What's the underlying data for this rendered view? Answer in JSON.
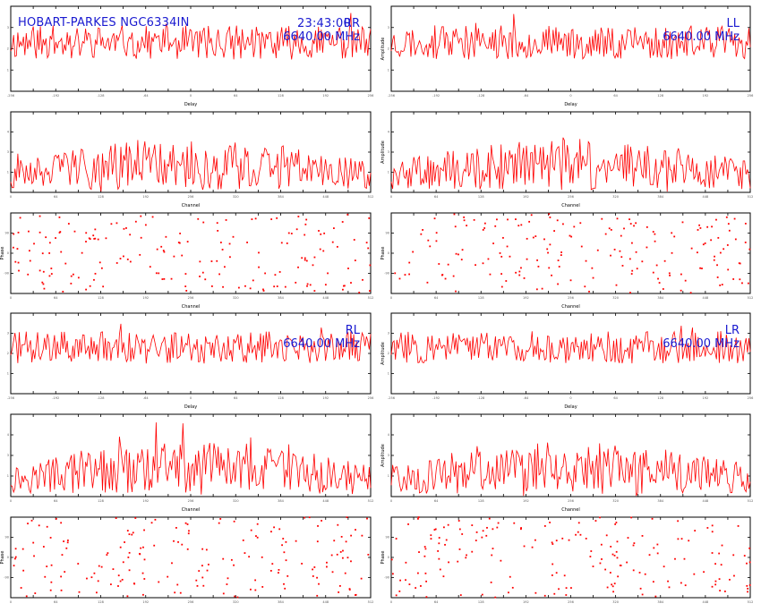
{
  "header": {
    "source_label": "HOBART-PARKES NGC6334IN",
    "time": "23:43:00",
    "frequency": "6640.00 MHz"
  },
  "colors": {
    "data": "#ff0000",
    "annotation": "#1a1ad0",
    "frame": "#000000"
  },
  "chart_data": [
    {
      "id": "RR-delay",
      "type": "line",
      "polarization": "RR",
      "annotation": "RR",
      "xlabel": "Delay",
      "ylabel": "",
      "xlim": [
        -256,
        256
      ],
      "ylim": [
        0,
        4
      ],
      "baseline": 2.3,
      "spread": 0.5,
      "seed": 11
    },
    {
      "id": "LL-delay",
      "type": "line",
      "polarization": "LL",
      "annotation": "LL",
      "xlabel": "Delay",
      "ylabel": "Amplitude",
      "xlim": [
        -256,
        256
      ],
      "ylim": [
        0,
        4
      ],
      "baseline": 2.3,
      "spread": 0.5,
      "seed": 23
    },
    {
      "id": "RR-channel",
      "type": "line",
      "polarization": "RR",
      "xlabel": "Channel",
      "ylabel": "",
      "xlim": [
        0,
        512
      ],
      "ylim": [
        0,
        5
      ],
      "baseline": 1.5,
      "spread": 0.9,
      "seed": 31
    },
    {
      "id": "LL-channel",
      "type": "line",
      "polarization": "LL",
      "xlabel": "Channel",
      "ylabel": "Amplitude",
      "xlim": [
        0,
        512
      ],
      "ylim": [
        0,
        5
      ],
      "baseline": 1.5,
      "spread": 0.9,
      "seed": 47
    },
    {
      "id": "RR-phase",
      "type": "scatter",
      "polarization": "RR",
      "xlabel": "Channel",
      "ylabel": "Phase",
      "xlim": [
        0,
        512
      ],
      "ylim": [
        -180,
        180
      ],
      "seed": 53
    },
    {
      "id": "LL-phase",
      "type": "scatter",
      "polarization": "LL",
      "xlabel": "Channel",
      "ylabel": "Phase",
      "xlim": [
        0,
        512
      ],
      "ylim": [
        -180,
        180
      ],
      "seed": 61
    },
    {
      "id": "RL-delay",
      "type": "line",
      "polarization": "RL",
      "annotation": "RL",
      "xlabel": "Delay",
      "ylabel": "",
      "xlim": [
        -256,
        256
      ],
      "ylim": [
        0,
        4
      ],
      "baseline": 2.3,
      "spread": 0.5,
      "seed": 71
    },
    {
      "id": "LR-delay",
      "type": "line",
      "polarization": "LR",
      "annotation": "LR",
      "xlabel": "Delay",
      "ylabel": "Amplitude",
      "xlim": [
        -256,
        256
      ],
      "ylim": [
        0,
        4
      ],
      "baseline": 2.3,
      "spread": 0.5,
      "seed": 83
    },
    {
      "id": "RL-channel",
      "type": "line",
      "polarization": "RL",
      "xlabel": "Channel",
      "ylabel": "",
      "xlim": [
        0,
        512
      ],
      "ylim": [
        0,
        5
      ],
      "baseline": 1.5,
      "spread": 0.9,
      "seed": 97
    },
    {
      "id": "LR-channel",
      "type": "line",
      "polarization": "LR",
      "xlabel": "Channel",
      "ylabel": "Amplitude",
      "xlim": [
        0,
        512
      ],
      "ylim": [
        0,
        5
      ],
      "baseline": 1.5,
      "spread": 0.9,
      "seed": 101
    },
    {
      "id": "RL-phase",
      "type": "scatter",
      "polarization": "RL",
      "xlabel": "Channel",
      "ylabel": "Phase",
      "xlim": [
        0,
        512
      ],
      "ylim": [
        -180,
        180
      ],
      "seed": 109
    },
    {
      "id": "LR-phase",
      "type": "scatter",
      "polarization": "LR",
      "xlabel": "Channel",
      "ylabel": "Phase",
      "xlim": [
        0,
        512
      ],
      "ylim": [
        -180,
        180
      ],
      "seed": 113
    }
  ]
}
